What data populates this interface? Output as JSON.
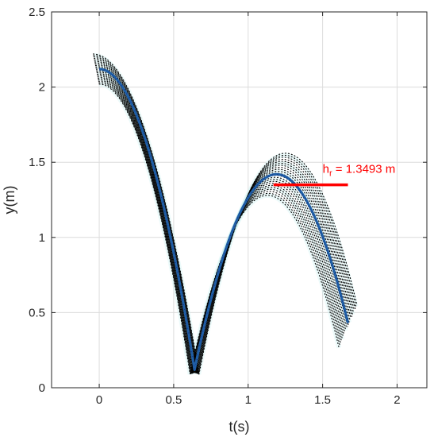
{
  "chart_data": {
    "type": "scatter",
    "xlabel": "t(s)",
    "ylabel": "y(m)",
    "xlim": [
      -0.32,
      2.2
    ],
    "ylim": [
      0,
      2.5
    ],
    "xticks": [
      "0",
      "0.5",
      "1",
      "1.5",
      "2"
    ],
    "xtick_values": [
      0,
      0.5,
      1,
      1.5,
      2
    ],
    "yticks": [
      "0",
      "0.5",
      "1",
      "1.5",
      "2",
      "2.5"
    ],
    "ytick_values": [
      0,
      0.5,
      1,
      1.5,
      2,
      2.5
    ],
    "grid": true,
    "colors": {
      "mean_curve": "#1f5fa6",
      "samples": "#000000",
      "band": "#c8f0f0",
      "annotation": "#ff0000",
      "axis": "#262626",
      "grid": "#dcdcdc"
    },
    "mean_trajectory": {
      "bounce1": {
        "t_start": 0.0,
        "t_end": 0.64,
        "y_start": 2.12,
        "y_end": 0.12
      },
      "bounce2": {
        "t_start": 0.64,
        "t_end": 1.67,
        "y_start": 0.12,
        "y_end": 0.17,
        "t_peak": 1.19,
        "y_peak": 1.42
      }
    },
    "sample_envelope": {
      "lower": {
        "t_start": 0.0,
        "t_end": 0.64,
        "y_start": 2.0,
        "y_end": 0.1
      },
      "upper": {
        "t_start": -0.02,
        "t_end": 1.75,
        "y_peak1": 2.2,
        "y_peak2": 1.56
      }
    },
    "rebound_height": {
      "t_start": 1.17,
      "t_end": 1.67,
      "y": 1.35
    },
    "annotation": {
      "main": "h",
      "subscript": "r",
      "value_text": " = 1.3493 m",
      "t": 1.5,
      "y": 1.43
    }
  }
}
